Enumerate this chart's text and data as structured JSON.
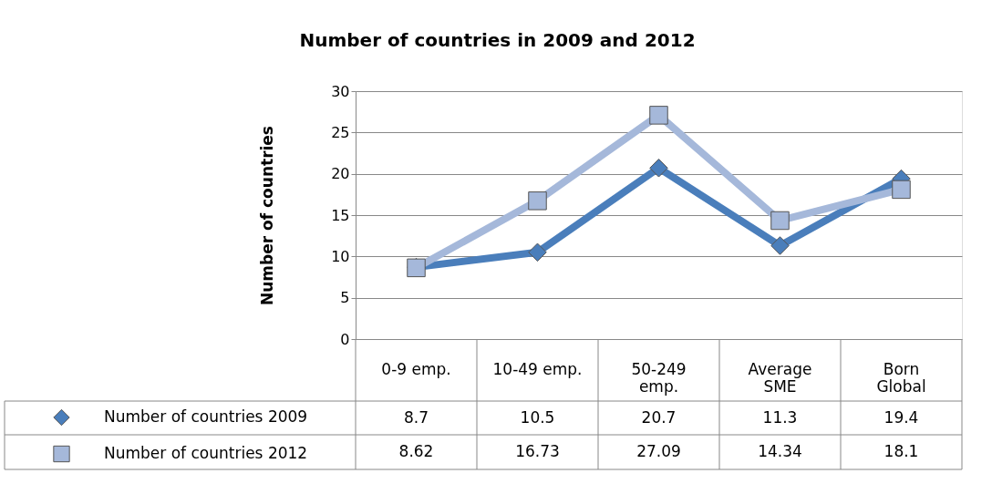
{
  "chart_data": {
    "type": "line",
    "title": "Number of countries in 2009 and 2012",
    "ylabel": "Number of countries",
    "categories": [
      "0-9 emp.",
      "10-49 emp.",
      "50-249 emp.",
      "Average SME",
      "Born Global"
    ],
    "series": [
      {
        "name": "Number of countries 2009",
        "color": "#4a7ebb",
        "marker": "diamond",
        "values": [
          8.7,
          10.5,
          20.7,
          11.3,
          19.4
        ]
      },
      {
        "name": "Number of countries 2012",
        "color": "#a5b8da",
        "marker": "square",
        "values": [
          8.62,
          16.73,
          27.09,
          14.34,
          18.1
        ]
      }
    ],
    "ylim": [
      0,
      30
    ],
    "yticks": [
      0,
      5,
      10,
      15,
      20,
      25,
      30
    ],
    "grid": "y",
    "data_labels": true,
    "legend": "bottom",
    "line_style": "solid"
  }
}
